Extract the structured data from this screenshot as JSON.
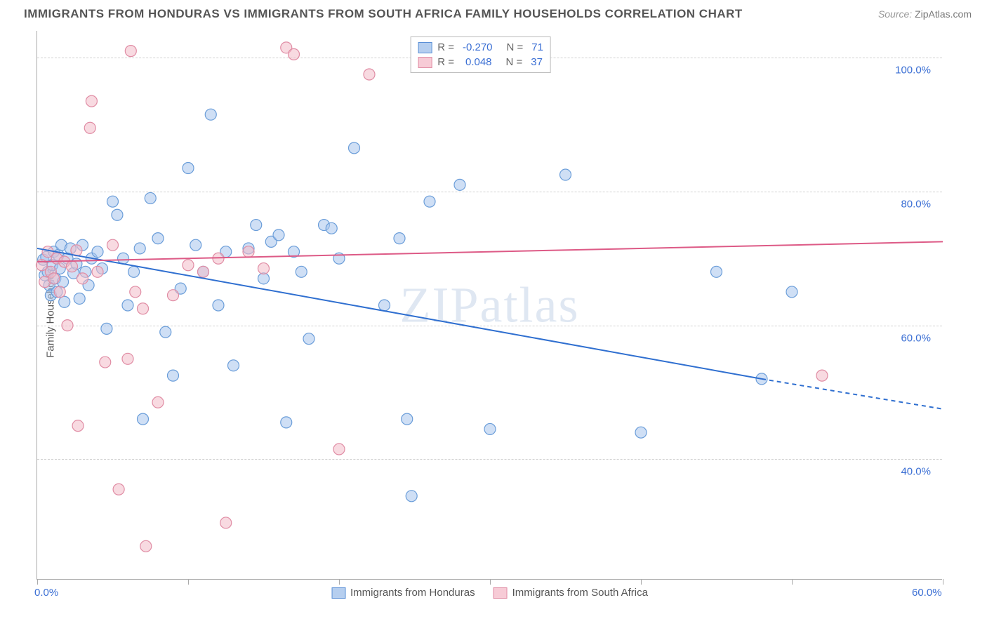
{
  "title": "IMMIGRANTS FROM HONDURAS VS IMMIGRANTS FROM SOUTH AFRICA FAMILY HOUSEHOLDS CORRELATION CHART",
  "source_label": "Source:",
  "source_value": "ZipAtlas.com",
  "y_axis_label": "Family Households",
  "watermark": "ZIPatlas",
  "chart": {
    "type": "scatter",
    "xlim": [
      0,
      60
    ],
    "ylim": [
      22,
      104
    ],
    "x_ticks": [
      0,
      10,
      20,
      30,
      40,
      50,
      60
    ],
    "x_tick_labels": {
      "0": "0.0%",
      "60": "60.0%"
    },
    "y_gridlines": [
      40,
      60,
      80,
      100
    ],
    "y_tick_labels": {
      "40": "40.0%",
      "60": "60.0%",
      "80": "80.0%",
      "100": "100.0%"
    },
    "background_color": "#ffffff",
    "grid_color": "#d0d0d0",
    "axis_color": "#aaaaaa",
    "marker_radius": 8,
    "marker_opacity": 0.55,
    "series": [
      {
        "name": "Immigrants from Honduras",
        "color_fill": "#a7c5ec",
        "color_stroke": "#6a9dd9",
        "r_value": "-0.270",
        "n_value": "71",
        "trend": {
          "x1": 0,
          "y1": 71.5,
          "x2": 48,
          "y2": 52,
          "dash_from_x": 48,
          "x3": 60,
          "y3": 47.5,
          "color": "#2f6fd0",
          "width": 2
        },
        "points": [
          [
            0.4,
            69.8
          ],
          [
            0.5,
            67.5
          ],
          [
            0.6,
            70.2
          ],
          [
            0.7,
            68.0
          ],
          [
            0.8,
            66.0
          ],
          [
            0.9,
            64.5
          ],
          [
            1.0,
            69.0
          ],
          [
            1.1,
            71.0
          ],
          [
            1.2,
            67.0
          ],
          [
            1.3,
            65.0
          ],
          [
            1.4,
            70.5
          ],
          [
            1.5,
            68.5
          ],
          [
            1.6,
            72.0
          ],
          [
            1.7,
            66.5
          ],
          [
            1.8,
            63.5
          ],
          [
            2.0,
            70.0
          ],
          [
            2.2,
            71.5
          ],
          [
            2.4,
            67.8
          ],
          [
            2.6,
            69.2
          ],
          [
            2.8,
            64.0
          ],
          [
            3.0,
            72.0
          ],
          [
            3.2,
            68.0
          ],
          [
            3.4,
            66.0
          ],
          [
            3.6,
            70.0
          ],
          [
            4.0,
            71.0
          ],
          [
            4.3,
            68.5
          ],
          [
            4.6,
            59.5
          ],
          [
            5.0,
            78.5
          ],
          [
            5.3,
            76.5
          ],
          [
            5.7,
            70.0
          ],
          [
            6.0,
            63.0
          ],
          [
            6.4,
            68.0
          ],
          [
            6.8,
            71.5
          ],
          [
            7.0,
            46.0
          ],
          [
            7.5,
            79.0
          ],
          [
            8.0,
            73.0
          ],
          [
            8.5,
            59.0
          ],
          [
            9.0,
            52.5
          ],
          [
            9.5,
            65.5
          ],
          [
            10.0,
            83.5
          ],
          [
            10.5,
            72.0
          ],
          [
            11.0,
            68.0
          ],
          [
            11.5,
            91.5
          ],
          [
            12.0,
            63.0
          ],
          [
            12.5,
            71.0
          ],
          [
            13.0,
            54.0
          ],
          [
            14.0,
            71.5
          ],
          [
            14.5,
            75.0
          ],
          [
            15.0,
            67.0
          ],
          [
            15.5,
            72.5
          ],
          [
            16.0,
            73.5
          ],
          [
            16.5,
            45.5
          ],
          [
            17.0,
            71.0
          ],
          [
            17.5,
            68.0
          ],
          [
            18.0,
            58.0
          ],
          [
            19.0,
            75.0
          ],
          [
            19.5,
            74.5
          ],
          [
            20.0,
            70.0
          ],
          [
            21.0,
            86.5
          ],
          [
            23.0,
            63.0
          ],
          [
            24.0,
            73.0
          ],
          [
            24.5,
            46.0
          ],
          [
            24.8,
            34.5
          ],
          [
            26.0,
            78.5
          ],
          [
            28.0,
            81.0
          ],
          [
            30.0,
            44.5
          ],
          [
            35.0,
            82.5
          ],
          [
            40.0,
            44.0
          ],
          [
            45.0,
            68.0
          ],
          [
            48.0,
            52.0
          ],
          [
            50.0,
            65.0
          ]
        ]
      },
      {
        "name": "Immigrants from South Africa",
        "color_fill": "#f2bcc9",
        "color_stroke": "#e08ca4",
        "r_value": "0.048",
        "n_value": "37",
        "trend": {
          "x1": 0,
          "y1": 69.5,
          "x2": 60,
          "y2": 72.5,
          "color": "#dd5a86",
          "width": 2
        },
        "points": [
          [
            0.3,
            69.0
          ],
          [
            0.5,
            66.5
          ],
          [
            0.7,
            71.0
          ],
          [
            0.9,
            68.0
          ],
          [
            1.1,
            67.0
          ],
          [
            1.3,
            70.0
          ],
          [
            1.5,
            65.0
          ],
          [
            1.8,
            69.5
          ],
          [
            2.0,
            60.0
          ],
          [
            2.3,
            68.8
          ],
          [
            2.6,
            71.2
          ],
          [
            2.7,
            45.0
          ],
          [
            3.0,
            67.0
          ],
          [
            3.5,
            89.5
          ],
          [
            3.6,
            93.5
          ],
          [
            4.0,
            68.0
          ],
          [
            4.5,
            54.5
          ],
          [
            5.0,
            72.0
          ],
          [
            5.4,
            35.5
          ],
          [
            6.0,
            55.0
          ],
          [
            6.2,
            101.0
          ],
          [
            6.5,
            65.0
          ],
          [
            7.0,
            62.5
          ],
          [
            7.2,
            27.0
          ],
          [
            8.0,
            48.5
          ],
          [
            9.0,
            64.5
          ],
          [
            10.0,
            69.0
          ],
          [
            11.0,
            68.0
          ],
          [
            12.0,
            70.0
          ],
          [
            12.5,
            30.5
          ],
          [
            14.0,
            71.0
          ],
          [
            15.0,
            68.5
          ],
          [
            16.5,
            101.5
          ],
          [
            17.0,
            100.5
          ],
          [
            20.0,
            41.5
          ],
          [
            22.0,
            97.5
          ],
          [
            52.0,
            52.5
          ]
        ]
      }
    ],
    "legend_top": {
      "r_label": "R =",
      "n_label": "N ="
    }
  }
}
